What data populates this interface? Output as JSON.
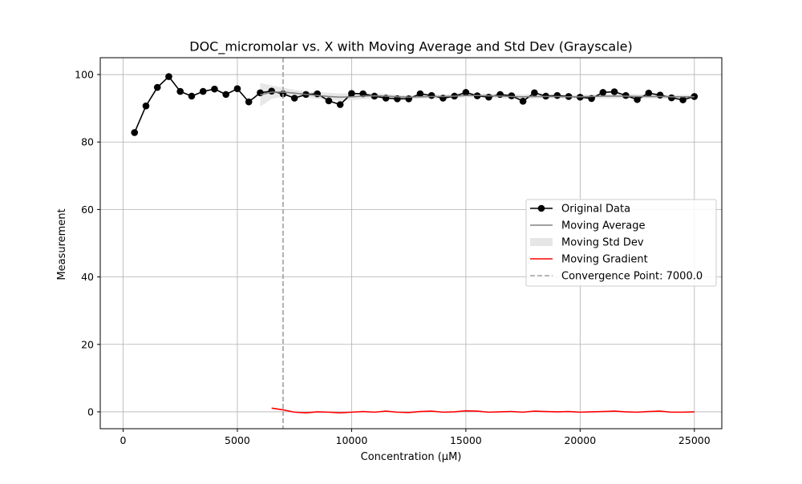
{
  "chart_data": {
    "type": "line",
    "title": "DOC_micromolar vs. X with Moving Average and Std Dev (Grayscale)",
    "xlabel": "Concentration (µM)",
    "ylabel": "Measurement",
    "xlim": [
      -1000,
      26200
    ],
    "ylim": [
      -5,
      105
    ],
    "xticks": [
      0,
      5000,
      10000,
      15000,
      20000,
      25000
    ],
    "yticks": [
      0,
      20,
      40,
      60,
      80,
      100
    ],
    "grid": true,
    "legend_position": "center-right",
    "series": [
      {
        "name": "Original Data",
        "color": "#000000",
        "marker": "circle",
        "x": [
          500,
          1000,
          1500,
          2000,
          2500,
          3000,
          3500,
          4000,
          4500,
          5000,
          5500,
          6000,
          6500,
          7000,
          7500,
          8000,
          8500,
          9000,
          9500,
          10000,
          10500,
          11000,
          11500,
          12000,
          12500,
          13000,
          13500,
          14000,
          14500,
          15000,
          15500,
          16000,
          16500,
          17000,
          17500,
          18000,
          18500,
          19000,
          19500,
          20000,
          20500,
          21000,
          21500,
          22000,
          22500,
          23000,
          23500,
          24000,
          24500,
          25000
        ],
        "values": [
          82.8,
          90.7,
          96.2,
          99.4,
          95.0,
          93.6,
          95.0,
          95.7,
          94.1,
          95.8,
          91.9,
          94.6,
          95.1,
          94.3,
          93.0,
          94.1,
          94.3,
          92.2,
          91.1,
          94.4,
          94.3,
          93.6,
          93.0,
          92.8,
          92.8,
          94.3,
          93.8,
          93.0,
          93.6,
          94.7,
          93.7,
          93.3,
          94.1,
          93.7,
          92.1,
          94.6,
          93.6,
          93.8,
          93.5,
          93.3,
          92.9,
          94.7,
          94.9,
          93.8,
          92.6,
          94.5,
          93.9,
          93.1,
          92.5,
          93.5
        ]
      },
      {
        "name": "Moving Average",
        "color": "#808080",
        "x": [
          6000,
          6500,
          7000,
          7500,
          8000,
          8500,
          9000,
          9500,
          10000,
          10500,
          11000,
          11500,
          12000,
          12500,
          13000,
          13500,
          14000,
          14500,
          15000,
          15500,
          16000,
          16500,
          17000,
          17500,
          18000,
          18500,
          19000,
          19500,
          20000,
          20500,
          21000,
          21500,
          22000,
          22500,
          23000,
          23500,
          24000,
          24500,
          25000
        ],
        "values": [
          94.0,
          94.8,
          94.8,
          94.5,
          94.1,
          93.8,
          93.5,
          93.3,
          93.4,
          93.6,
          93.7,
          93.6,
          93.4,
          93.3,
          93.4,
          93.5,
          93.5,
          93.6,
          93.8,
          93.8,
          93.7,
          93.6,
          93.5,
          93.4,
          93.5,
          93.5,
          93.5,
          93.4,
          93.4,
          93.5,
          93.6,
          93.6,
          93.6,
          93.5,
          93.5,
          93.5,
          93.4,
          93.4,
          93.4
        ],
        "std": [
          3.5,
          2.0,
          1.3,
          1.0,
          0.9,
          1.0,
          1.1,
          1.1,
          1.0,
          0.9,
          0.8,
          0.7,
          0.6,
          0.6,
          0.6,
          0.6,
          0.6,
          0.6,
          0.6,
          0.6,
          0.6,
          0.6,
          0.7,
          0.7,
          0.7,
          0.6,
          0.6,
          0.6,
          0.6,
          0.6,
          0.6,
          0.7,
          0.7,
          0.7,
          0.6,
          0.6,
          0.6,
          0.6,
          0.6
        ]
      },
      {
        "name": "Moving Std Dev",
        "color": "#e6e6e6"
      },
      {
        "name": "Moving Gradient",
        "color": "#ff0000",
        "x": [
          6500,
          7000,
          7500,
          8000,
          8500,
          9000,
          9500,
          10000,
          10500,
          11000,
          11500,
          12000,
          12500,
          13000,
          13500,
          14000,
          14500,
          15000,
          15500,
          16000,
          16500,
          17000,
          17500,
          18000,
          18500,
          19000,
          19500,
          20000,
          20500,
          21000,
          21500,
          22000,
          22500,
          23000,
          23500,
          24000,
          24500,
          25000
        ],
        "values": [
          1.1,
          0.6,
          -0.1,
          -0.3,
          0.0,
          -0.1,
          -0.3,
          -0.1,
          0.1,
          -0.1,
          0.2,
          -0.1,
          -0.2,
          0.1,
          0.2,
          -0.1,
          0.0,
          0.3,
          0.2,
          -0.1,
          0.0,
          0.1,
          -0.1,
          0.2,
          0.1,
          0.0,
          0.1,
          -0.1,
          0.0,
          0.1,
          0.2,
          0.0,
          -0.1,
          0.1,
          0.2,
          -0.1,
          -0.1,
          0.0
        ]
      },
      {
        "name": "Convergence Point: 7000.0",
        "color": "#a0a0a0",
        "x_value": 7000
      }
    ]
  }
}
